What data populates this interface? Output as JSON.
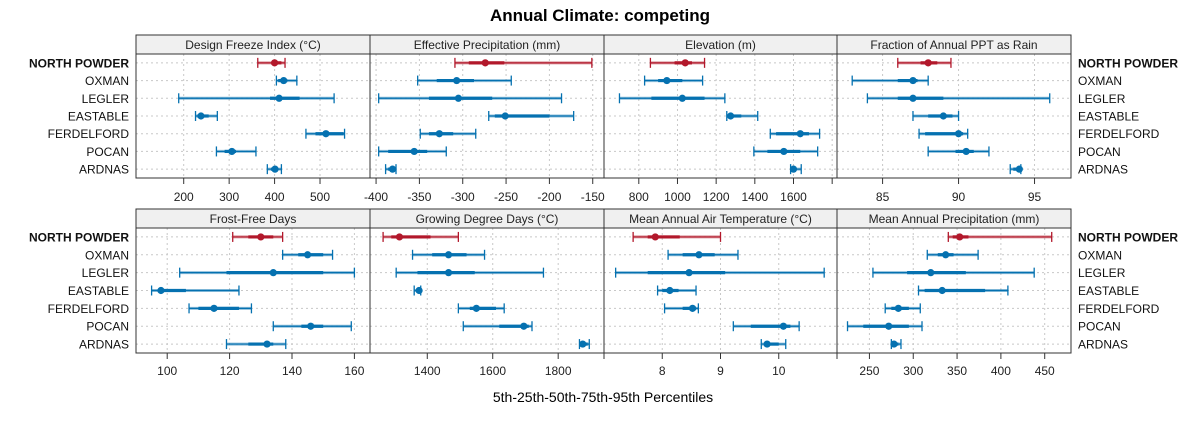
{
  "chart_data": {
    "type": "dot-interval",
    "title": "Annual Climate: competing",
    "xlabel": "5th-25th-50th-75th-95th Percentiles",
    "grid": true,
    "highlight_series": "NORTH POWDER",
    "colors": {
      "highlight": "#b2182b",
      "other": "#0571b0",
      "strip_bg": "#f0f0f0",
      "grid": "#c8c8c8",
      "frame": "#333333"
    },
    "rows": [
      "NORTH POWDER",
      "OXMAN",
      "LEGLER",
      "EASTABLE",
      "FERDELFORD",
      "POCAN",
      "ARDNAS"
    ],
    "panels": [
      {
        "title": "Design Freeze Index (°C)",
        "xlim": [
          95,
          610
        ],
        "ticks": [
          200,
          300,
          400,
          500
        ],
        "tick_labels": [
          "200",
          "300",
          "400",
          "500"
        ],
        "values": {
          "NORTH POWDER": [
            363,
            395,
            400,
            415,
            423
          ],
          "OXMAN": [
            404,
            408,
            420,
            428,
            449
          ],
          "LEGLER": [
            189,
            390,
            410,
            455,
            531
          ],
          "EASTABLE": [
            226,
            230,
            238,
            255,
            274
          ],
          "FERDELFORD": [
            469,
            490,
            513,
            552,
            554
          ],
          "POCAN": [
            272,
            290,
            306,
            315,
            359
          ],
          "ARDNAS": [
            384,
            392,
            401,
            405,
            415
          ]
        }
      },
      {
        "title": "Effective Precipitation (mm)",
        "xlim": [
          -407,
          -137
        ],
        "ticks": [
          -400,
          -350,
          -300,
          -250,
          -200,
          -150
        ],
        "tick_labels": [
          "-400",
          "-350",
          "-300",
          "-250",
          "-200",
          "-150"
        ],
        "values": {
          "NORTH POWDER": [
            -309,
            -293,
            -274,
            -252,
            -151
          ],
          "OXMAN": [
            -352,
            -330,
            -307,
            -287,
            -244
          ],
          "LEGLER": [
            -397,
            -339,
            -305,
            -266,
            -186
          ],
          "EASTABLE": [
            -270,
            -263,
            -251,
            -200,
            -172
          ],
          "FERDELFORD": [
            -349,
            -339,
            -327,
            -311,
            -285
          ],
          "POCAN": [
            -397,
            -386,
            -356,
            -341,
            -319
          ],
          "ARDNAS": [
            -389,
            -386,
            -381,
            -378,
            -377
          ]
        }
      },
      {
        "title": "Elevation (m)",
        "xlim": [
          620,
          1825
        ],
        "ticks": [
          800,
          1000,
          1200,
          1400,
          1600,
          1800
        ],
        "tick_labels": [
          "800",
          "1000",
          "1200",
          "1400",
          "1600",
          ""
        ],
        "values": {
          "NORTH POWDER": [
            860,
            985,
            1040,
            1075,
            1140
          ],
          "OXMAN": [
            830,
            900,
            945,
            1025,
            1130
          ],
          "LEGLER": [
            700,
            865,
            1025,
            1140,
            1245
          ],
          "EASTABLE": [
            1255,
            1265,
            1275,
            1330,
            1415
          ],
          "FERDELFORD": [
            1480,
            1510,
            1635,
            1680,
            1735
          ],
          "POCAN": [
            1395,
            1465,
            1550,
            1635,
            1725
          ],
          "ARDNAS": [
            1585,
            1595,
            1600,
            1610,
            1640
          ]
        }
      },
      {
        "title": "Fraction of Annual PPT as Rain",
        "xlim": [
          82,
          97.4
        ],
        "ticks": [
          85,
          90,
          95
        ],
        "tick_labels": [
          "85",
          "90",
          "95"
        ],
        "values": {
          "NORTH POWDER": [
            86.0,
            87.5,
            88.0,
            88.6,
            89.5
          ],
          "OXMAN": [
            83.0,
            86.0,
            87.0,
            87.3,
            88.0
          ],
          "LEGLER": [
            84.0,
            86.0,
            87.0,
            89.0,
            96.0
          ],
          "EASTABLE": [
            87.0,
            88.0,
            89.0,
            89.6,
            90.0
          ],
          "FERDELFORD": [
            87.4,
            87.8,
            90.0,
            90.3,
            90.6
          ],
          "POCAN": [
            88.0,
            89.8,
            90.5,
            91.0,
            92.0
          ],
          "ARDNAS": [
            93.4,
            93.6,
            94.0,
            94.0,
            94.1
          ]
        }
      },
      {
        "title": "Frost-Free Days",
        "xlim": [
          90,
          165
        ],
        "ticks": [
          100,
          120,
          140,
          160
        ],
        "tick_labels": [
          "100",
          "120",
          "140",
          "160"
        ],
        "values": {
          "NORTH POWDER": [
            121,
            126,
            130,
            134,
            137
          ],
          "OXMAN": [
            137,
            142,
            145,
            150,
            153
          ],
          "LEGLER": [
            104,
            119,
            134,
            150,
            160
          ],
          "EASTABLE": [
            95,
            97,
            98,
            106,
            123
          ],
          "FERDELFORD": [
            107,
            110,
            115,
            123,
            127
          ],
          "POCAN": [
            134,
            143,
            146,
            150,
            159
          ],
          "ARDNAS": [
            119,
            126,
            132,
            134,
            138
          ]
        }
      },
      {
        "title": "Growing Degree Days (°C)",
        "xlim": [
          1225,
          1940
        ],
        "ticks": [
          1400,
          1600,
          1800
        ],
        "tick_labels": [
          "1400",
          "1600",
          "1800"
        ],
        "values": {
          "NORTH POWDER": [
            1265,
            1290,
            1315,
            1410,
            1495
          ],
          "OXMAN": [
            1355,
            1415,
            1465,
            1520,
            1575
          ],
          "LEGLER": [
            1305,
            1370,
            1465,
            1545,
            1755
          ],
          "EASTABLE": [
            1360,
            1368,
            1375,
            1380,
            1380
          ],
          "FERDELFORD": [
            1495,
            1530,
            1550,
            1610,
            1635
          ],
          "POCAN": [
            1510,
            1620,
            1695,
            1710,
            1720
          ],
          "ARDNAS": [
            1865,
            1868,
            1875,
            1890,
            1895
          ]
        }
      },
      {
        "title": "Mean Annual Air Temperature (°C)",
        "xlim": [
          7.0,
          11.0
        ],
        "ticks": [
          7,
          8,
          9,
          10,
          11
        ],
        "tick_labels": [
          "",
          "8",
          "9",
          "10",
          ""
        ],
        "values": {
          "NORTH POWDER": [
            7.5,
            7.75,
            7.88,
            8.3,
            9.0
          ],
          "OXMAN": [
            8.1,
            8.35,
            8.63,
            8.9,
            9.3
          ],
          "LEGLER": [
            7.2,
            7.75,
            8.46,
            9.08,
            10.78
          ],
          "EASTABLE": [
            7.92,
            8.0,
            8.13,
            8.28,
            8.58
          ],
          "FERDELFORD": [
            8.04,
            8.35,
            8.52,
            8.58,
            8.62
          ],
          "POCAN": [
            9.22,
            9.52,
            10.08,
            10.2,
            10.35
          ],
          "ARDNAS": [
            9.7,
            9.75,
            9.8,
            10.0,
            10.12
          ]
        }
      },
      {
        "title": "Mean Annual Precipitation (mm)",
        "xlim": [
          213,
          480
        ],
        "ticks": [
          250,
          300,
          350,
          400,
          450
        ],
        "tick_labels": [
          "250",
          "300",
          "350",
          "400",
          "450"
        ],
        "values": {
          "NORTH POWDER": [
            340,
            345,
            353,
            363,
            458
          ],
          "OXMAN": [
            316,
            328,
            337,
            346,
            374
          ],
          "LEGLER": [
            254,
            293,
            320,
            360,
            438
          ],
          "EASTABLE": [
            306,
            313,
            333,
            382,
            408
          ],
          "FERDELFORD": [
            268,
            275,
            283,
            295,
            308
          ],
          "POCAN": [
            225,
            243,
            272,
            295,
            310
          ],
          "ARDNAS": [
            275,
            276,
            278,
            283,
            286
          ]
        }
      }
    ]
  }
}
